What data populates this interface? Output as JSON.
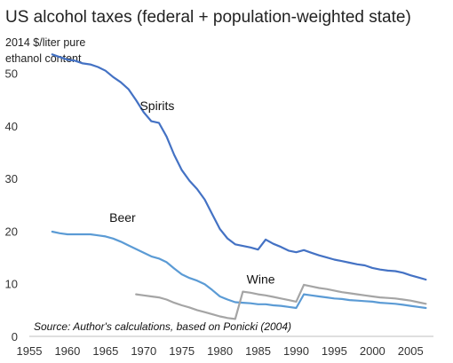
{
  "chart_data": {
    "type": "line",
    "title": "US alcohol taxes (federal + population-weighted state)",
    "ylabel": [
      "2014 $/liter pure",
      "ethanol content"
    ],
    "xlabel": "",
    "xlim": [
      1955,
      2008
    ],
    "ylim": [
      0,
      55
    ],
    "x_ticks": [
      1955,
      1960,
      1965,
      1970,
      1975,
      1980,
      1985,
      1990,
      1995,
      2000,
      2005
    ],
    "y_ticks": [
      0,
      10,
      20,
      30,
      40,
      50
    ],
    "grid": false,
    "legend": "none (inline labels)",
    "source": "Source: Author's calculations,  based on Ponicki (2004)",
    "series": [
      {
        "name": "Spirits",
        "color": "#4472c4",
        "x": [
          1958,
          1959,
          1960,
          1961,
          1962,
          1963,
          1964,
          1965,
          1966,
          1967,
          1968,
          1969,
          1970,
          1971,
          1972,
          1973,
          1974,
          1975,
          1976,
          1977,
          1978,
          1979,
          1980,
          1981,
          1982,
          1983,
          1984,
          1985,
          1986,
          1987,
          1988,
          1989,
          1990,
          1991,
          1992,
          1993,
          1994,
          1995,
          1996,
          1997,
          1998,
          1999,
          2000,
          2001,
          2002,
          2003,
          2004,
          2005,
          2006,
          2007
        ],
        "values": [
          53.6,
          53.1,
          52.6,
          52.4,
          51.9,
          51.7,
          51.2,
          50.5,
          49.3,
          48.3,
          47.0,
          44.9,
          42.6,
          40.9,
          40.6,
          38.0,
          34.5,
          31.6,
          29.6,
          28.0,
          26.0,
          23.2,
          20.4,
          18.6,
          17.5,
          17.2,
          16.9,
          16.5,
          18.4,
          17.6,
          17.0,
          16.3,
          16.0,
          16.4,
          15.9,
          15.4,
          15.0,
          14.6,
          14.3,
          14.0,
          13.7,
          13.5,
          13.0,
          12.7,
          12.5,
          12.4,
          12.1,
          11.6,
          11.2,
          10.8
        ]
      },
      {
        "name": "Beer",
        "color": "#5b9bd5",
        "x": [
          1958,
          1959,
          1960,
          1961,
          1962,
          1963,
          1964,
          1965,
          1966,
          1967,
          1968,
          1969,
          1970,
          1971,
          1972,
          1973,
          1974,
          1975,
          1976,
          1977,
          1978,
          1979,
          1980,
          1981,
          1982,
          1983,
          1984,
          1985,
          1986,
          1987,
          1988,
          1989,
          1990,
          1991,
          1992,
          1993,
          1994,
          1995,
          1996,
          1997,
          1998,
          1999,
          2000,
          2001,
          2002,
          2003,
          2004,
          2005,
          2006,
          2007
        ],
        "values": [
          19.9,
          19.6,
          19.4,
          19.4,
          19.4,
          19.4,
          19.2,
          19.0,
          18.6,
          18.0,
          17.3,
          16.6,
          15.9,
          15.2,
          14.8,
          14.1,
          12.9,
          11.8,
          11.1,
          10.6,
          9.9,
          8.8,
          7.6,
          7.0,
          6.5,
          6.4,
          6.3,
          6.1,
          6.1,
          5.9,
          5.8,
          5.6,
          5.4,
          8.0,
          7.8,
          7.6,
          7.4,
          7.2,
          7.1,
          6.9,
          6.8,
          6.7,
          6.6,
          6.4,
          6.3,
          6.2,
          6.0,
          5.8,
          5.6,
          5.4
        ]
      },
      {
        "name": "Wine",
        "color": "#a5a5a5",
        "x": [
          1969,
          1970,
          1971,
          1972,
          1973,
          1974,
          1975,
          1976,
          1977,
          1978,
          1979,
          1980,
          1981,
          1982,
          1983,
          1984,
          1985,
          1986,
          1987,
          1988,
          1989,
          1990,
          1991,
          1992,
          1993,
          1994,
          1995,
          1996,
          1997,
          1998,
          1999,
          2000,
          2001,
          2002,
          2003,
          2004,
          2005,
          2006,
          2007
        ],
        "values": [
          8.0,
          7.8,
          7.6,
          7.4,
          7.0,
          6.4,
          5.9,
          5.5,
          5.0,
          4.6,
          4.2,
          3.8,
          3.5,
          3.3,
          8.5,
          8.3,
          8.0,
          7.8,
          7.5,
          7.2,
          6.9,
          6.6,
          9.8,
          9.5,
          9.2,
          9.0,
          8.7,
          8.4,
          8.2,
          8.0,
          7.8,
          7.6,
          7.4,
          7.3,
          7.2,
          7.0,
          6.8,
          6.5,
          6.2
        ]
      }
    ],
    "labels": [
      {
        "text": "Spirits",
        "x": 1969.5,
        "y": 43.0
      },
      {
        "text": "Beer",
        "x": 1965.5,
        "y": 21.8
      },
      {
        "text": "Wine",
        "x": 1983.5,
        "y": 10.0
      }
    ]
  }
}
